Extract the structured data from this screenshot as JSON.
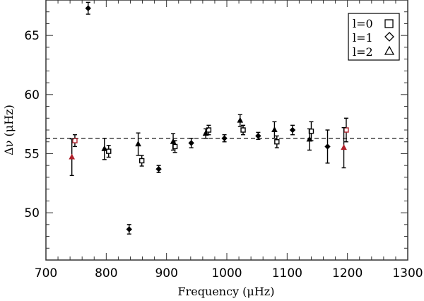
{
  "chart_data": {
    "type": "scatter",
    "title": "",
    "xlabel": "Frequency (μHz)",
    "ylabel": "Δν (μHz)",
    "xlim": [
      700,
      1300
    ],
    "ylim": [
      46,
      68
    ],
    "xticks": [
      "700",
      "800",
      "900",
      "1000",
      "1100",
      "1200",
      "1300"
    ],
    "yticks": [
      "50",
      "55",
      "60",
      "65"
    ],
    "grid": false,
    "legend_placement": "top-right",
    "reference_line": {
      "y": 56.3,
      "style": "dashed"
    },
    "highlight_color": "#b0202a",
    "series": [
      {
        "name": "l=0",
        "marker": "square",
        "points": [
          {
            "x": 748,
            "y": 56.1,
            "err": 0.5,
            "highlight": true
          },
          {
            "x": 804,
            "y": 55.2,
            "err": 0.5
          },
          {
            "x": 859,
            "y": 54.4,
            "err": 0.45
          },
          {
            "x": 914,
            "y": 55.6,
            "err": 0.5
          },
          {
            "x": 970,
            "y": 57.0,
            "err": 0.4
          },
          {
            "x": 1027,
            "y": 57.0,
            "err": 0.4
          },
          {
            "x": 1083,
            "y": 56.0,
            "err": 0.5
          },
          {
            "x": 1140,
            "y": 56.9,
            "err": 0.8
          },
          {
            "x": 1198,
            "y": 57.0,
            "err": 1.0,
            "highlight": true
          }
        ]
      },
      {
        "name": "l=1",
        "marker": "diamond",
        "points": [
          {
            "x": 770,
            "y": 67.3,
            "err": 0.5
          },
          {
            "x": 838,
            "y": 48.6,
            "err": 0.4
          },
          {
            "x": 887,
            "y": 53.7,
            "err": 0.3
          },
          {
            "x": 941,
            "y": 55.9,
            "err": 0.4
          },
          {
            "x": 996,
            "y": 56.3,
            "err": 0.3
          },
          {
            "x": 1052,
            "y": 56.5,
            "err": 0.3
          },
          {
            "x": 1109,
            "y": 57.0,
            "err": 0.4
          },
          {
            "x": 1167,
            "y": 55.6,
            "err": 1.4
          }
        ]
      },
      {
        "name": "l=2",
        "marker": "triangle",
        "points": [
          {
            "x": 743,
            "y": 54.7,
            "err": 1.55,
            "highlight": true
          },
          {
            "x": 797,
            "y": 55.4,
            "err": 0.9
          },
          {
            "x": 853,
            "y": 55.8,
            "err": 0.95
          },
          {
            "x": 911,
            "y": 56.0,
            "err": 0.7
          },
          {
            "x": 965,
            "y": 56.7,
            "err": 0.4
          },
          {
            "x": 1022,
            "y": 57.8,
            "err": 0.5
          },
          {
            "x": 1079,
            "y": 57.0,
            "err": 0.7
          },
          {
            "x": 1137,
            "y": 56.2,
            "err": 0.9
          },
          {
            "x": 1194,
            "y": 55.5,
            "err": 1.7,
            "highlight": true
          }
        ]
      }
    ]
  }
}
